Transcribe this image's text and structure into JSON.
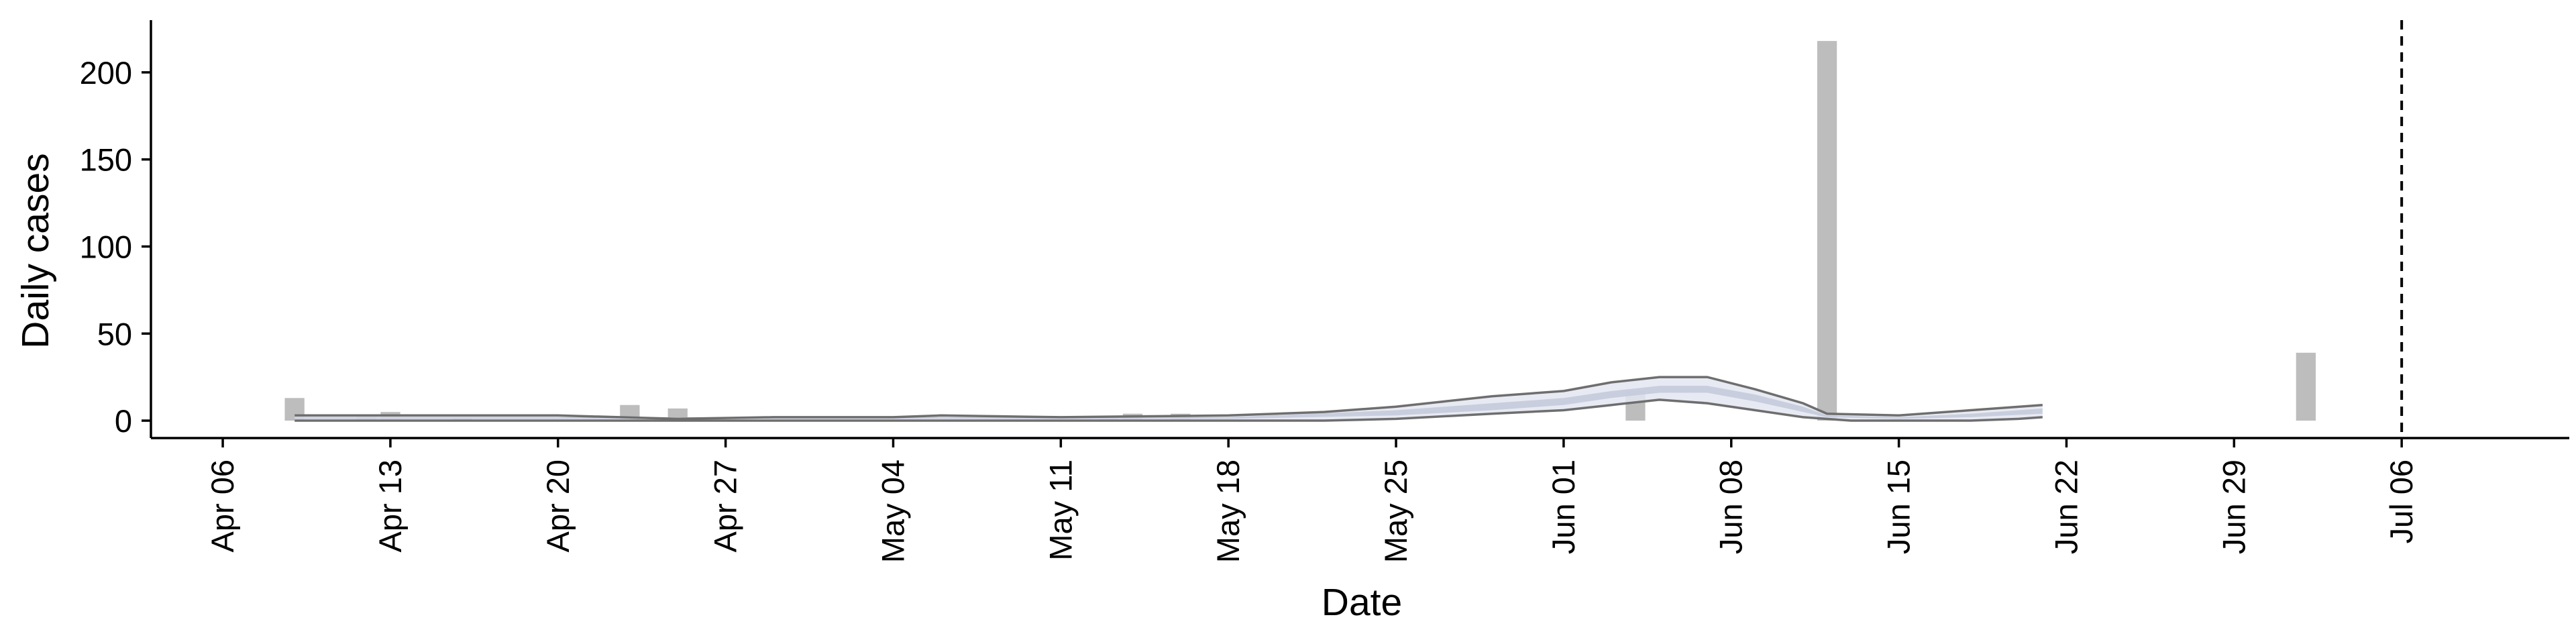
{
  "chart_data": {
    "type": "bar",
    "xlabel": "Date",
    "ylabel": "Daily cases",
    "xlim": [
      "2020-04-03",
      "2020-07-13"
    ],
    "ylim": [
      -10,
      230
    ],
    "x_ticks": [
      "2020-04-06",
      "2020-04-13",
      "2020-04-20",
      "2020-04-27",
      "2020-05-04",
      "2020-05-11",
      "2020-05-18",
      "2020-05-25",
      "2020-06-01",
      "2020-06-08",
      "2020-06-15",
      "2020-06-22",
      "2020-06-29",
      "2020-07-06"
    ],
    "x_tick_labels": [
      "Apr 06",
      "Apr 13",
      "Apr 20",
      "Apr 27",
      "May 04",
      "May 11",
      "May 18",
      "May 25",
      "Jun 01",
      "Jun 08",
      "Jun 15",
      "Jun 22",
      "Jun 29",
      "Jul 06"
    ],
    "y_ticks": [
      0,
      50,
      100,
      150,
      200
    ],
    "y_tick_labels": [
      "0",
      "50",
      "100",
      "150",
      "200"
    ],
    "grid": false,
    "colors": {
      "bars": "#bdbdbd",
      "bars_overlap": "#7f7f7f",
      "outer_band": "#6e6e6e",
      "band_fill": "#e3e6f0",
      "inner_band": "#c5cbdc",
      "vline": "#000000"
    },
    "bars": [
      {
        "x": "2020-04-09",
        "y": 13
      },
      {
        "x": "2020-04-12",
        "y": 3
      },
      {
        "x": "2020-04-13",
        "y": 5
      },
      {
        "x": "2020-04-16",
        "y": 2
      },
      {
        "x": "2020-04-23",
        "y": 9
      },
      {
        "x": "2020-04-25",
        "y": 7
      },
      {
        "x": "2020-05-13",
        "y": 2
      },
      {
        "x": "2020-05-14",
        "y": 4
      },
      {
        "x": "2020-05-16",
        "y": 4
      },
      {
        "x": "2020-06-04",
        "y": 17
      },
      {
        "x": "2020-06-12",
        "y": 218
      },
      {
        "x": "2020-07-02",
        "y": 39
      }
    ],
    "estimate_band": {
      "outer_lower": [
        [
          "2020-04-09",
          0
        ],
        [
          "2020-05-18",
          0
        ],
        [
          "2020-05-22",
          0
        ],
        [
          "2020-05-25",
          1
        ],
        [
          "2020-05-29",
          4
        ],
        [
          "2020-06-01",
          6
        ],
        [
          "2020-06-03",
          9
        ],
        [
          "2020-06-05",
          12
        ],
        [
          "2020-06-07",
          10
        ],
        [
          "2020-06-09",
          6
        ],
        [
          "2020-06-11",
          2
        ],
        [
          "2020-06-13",
          0
        ],
        [
          "2020-06-18",
          0
        ],
        [
          "2020-06-20",
          1
        ],
        [
          "2020-06-21",
          2
        ]
      ],
      "outer_upper": [
        [
          "2020-04-09",
          3
        ],
        [
          "2020-04-20",
          3
        ],
        [
          "2020-04-25",
          1
        ],
        [
          "2020-04-29",
          2
        ],
        [
          "2020-05-04",
          2
        ],
        [
          "2020-05-06",
          3
        ],
        [
          "2020-05-11",
          2
        ],
        [
          "2020-05-18",
          3
        ],
        [
          "2020-05-22",
          5
        ],
        [
          "2020-05-25",
          8
        ],
        [
          "2020-05-27",
          11
        ],
        [
          "2020-05-29",
          14
        ],
        [
          "2020-06-01",
          17
        ],
        [
          "2020-06-03",
          22
        ],
        [
          "2020-06-05",
          25
        ],
        [
          "2020-06-07",
          25
        ],
        [
          "2020-06-09",
          18
        ],
        [
          "2020-06-11",
          10
        ],
        [
          "2020-06-12",
          4
        ],
        [
          "2020-06-15",
          3
        ],
        [
          "2020-06-18",
          6
        ],
        [
          "2020-06-21",
          9
        ]
      ],
      "inner_lower": [
        [
          "2020-04-09",
          1
        ],
        [
          "2020-05-18",
          1
        ],
        [
          "2020-05-25",
          3
        ],
        [
          "2020-05-29",
          6
        ],
        [
          "2020-06-01",
          9
        ],
        [
          "2020-06-03",
          13
        ],
        [
          "2020-06-05",
          16
        ],
        [
          "2020-06-07",
          16
        ],
        [
          "2020-06-09",
          11
        ],
        [
          "2020-06-11",
          5
        ],
        [
          "2020-06-12",
          2
        ],
        [
          "2020-06-15",
          1
        ],
        [
          "2020-06-18",
          2
        ],
        [
          "2020-06-21",
          4
        ]
      ],
      "inner_upper": [
        [
          "2020-04-09",
          2
        ],
        [
          "2020-05-18",
          2
        ],
        [
          "2020-05-25",
          6
        ],
        [
          "2020-05-29",
          10
        ],
        [
          "2020-06-01",
          13
        ],
        [
          "2020-06-03",
          17
        ],
        [
          "2020-06-05",
          20
        ],
        [
          "2020-06-07",
          20
        ],
        [
          "2020-06-09",
          15
        ],
        [
          "2020-06-11",
          8
        ],
        [
          "2020-06-12",
          3
        ],
        [
          "2020-06-15",
          2
        ],
        [
          "2020-06-18",
          4
        ],
        [
          "2020-06-21",
          7
        ]
      ]
    },
    "vline": "2020-07-06"
  }
}
